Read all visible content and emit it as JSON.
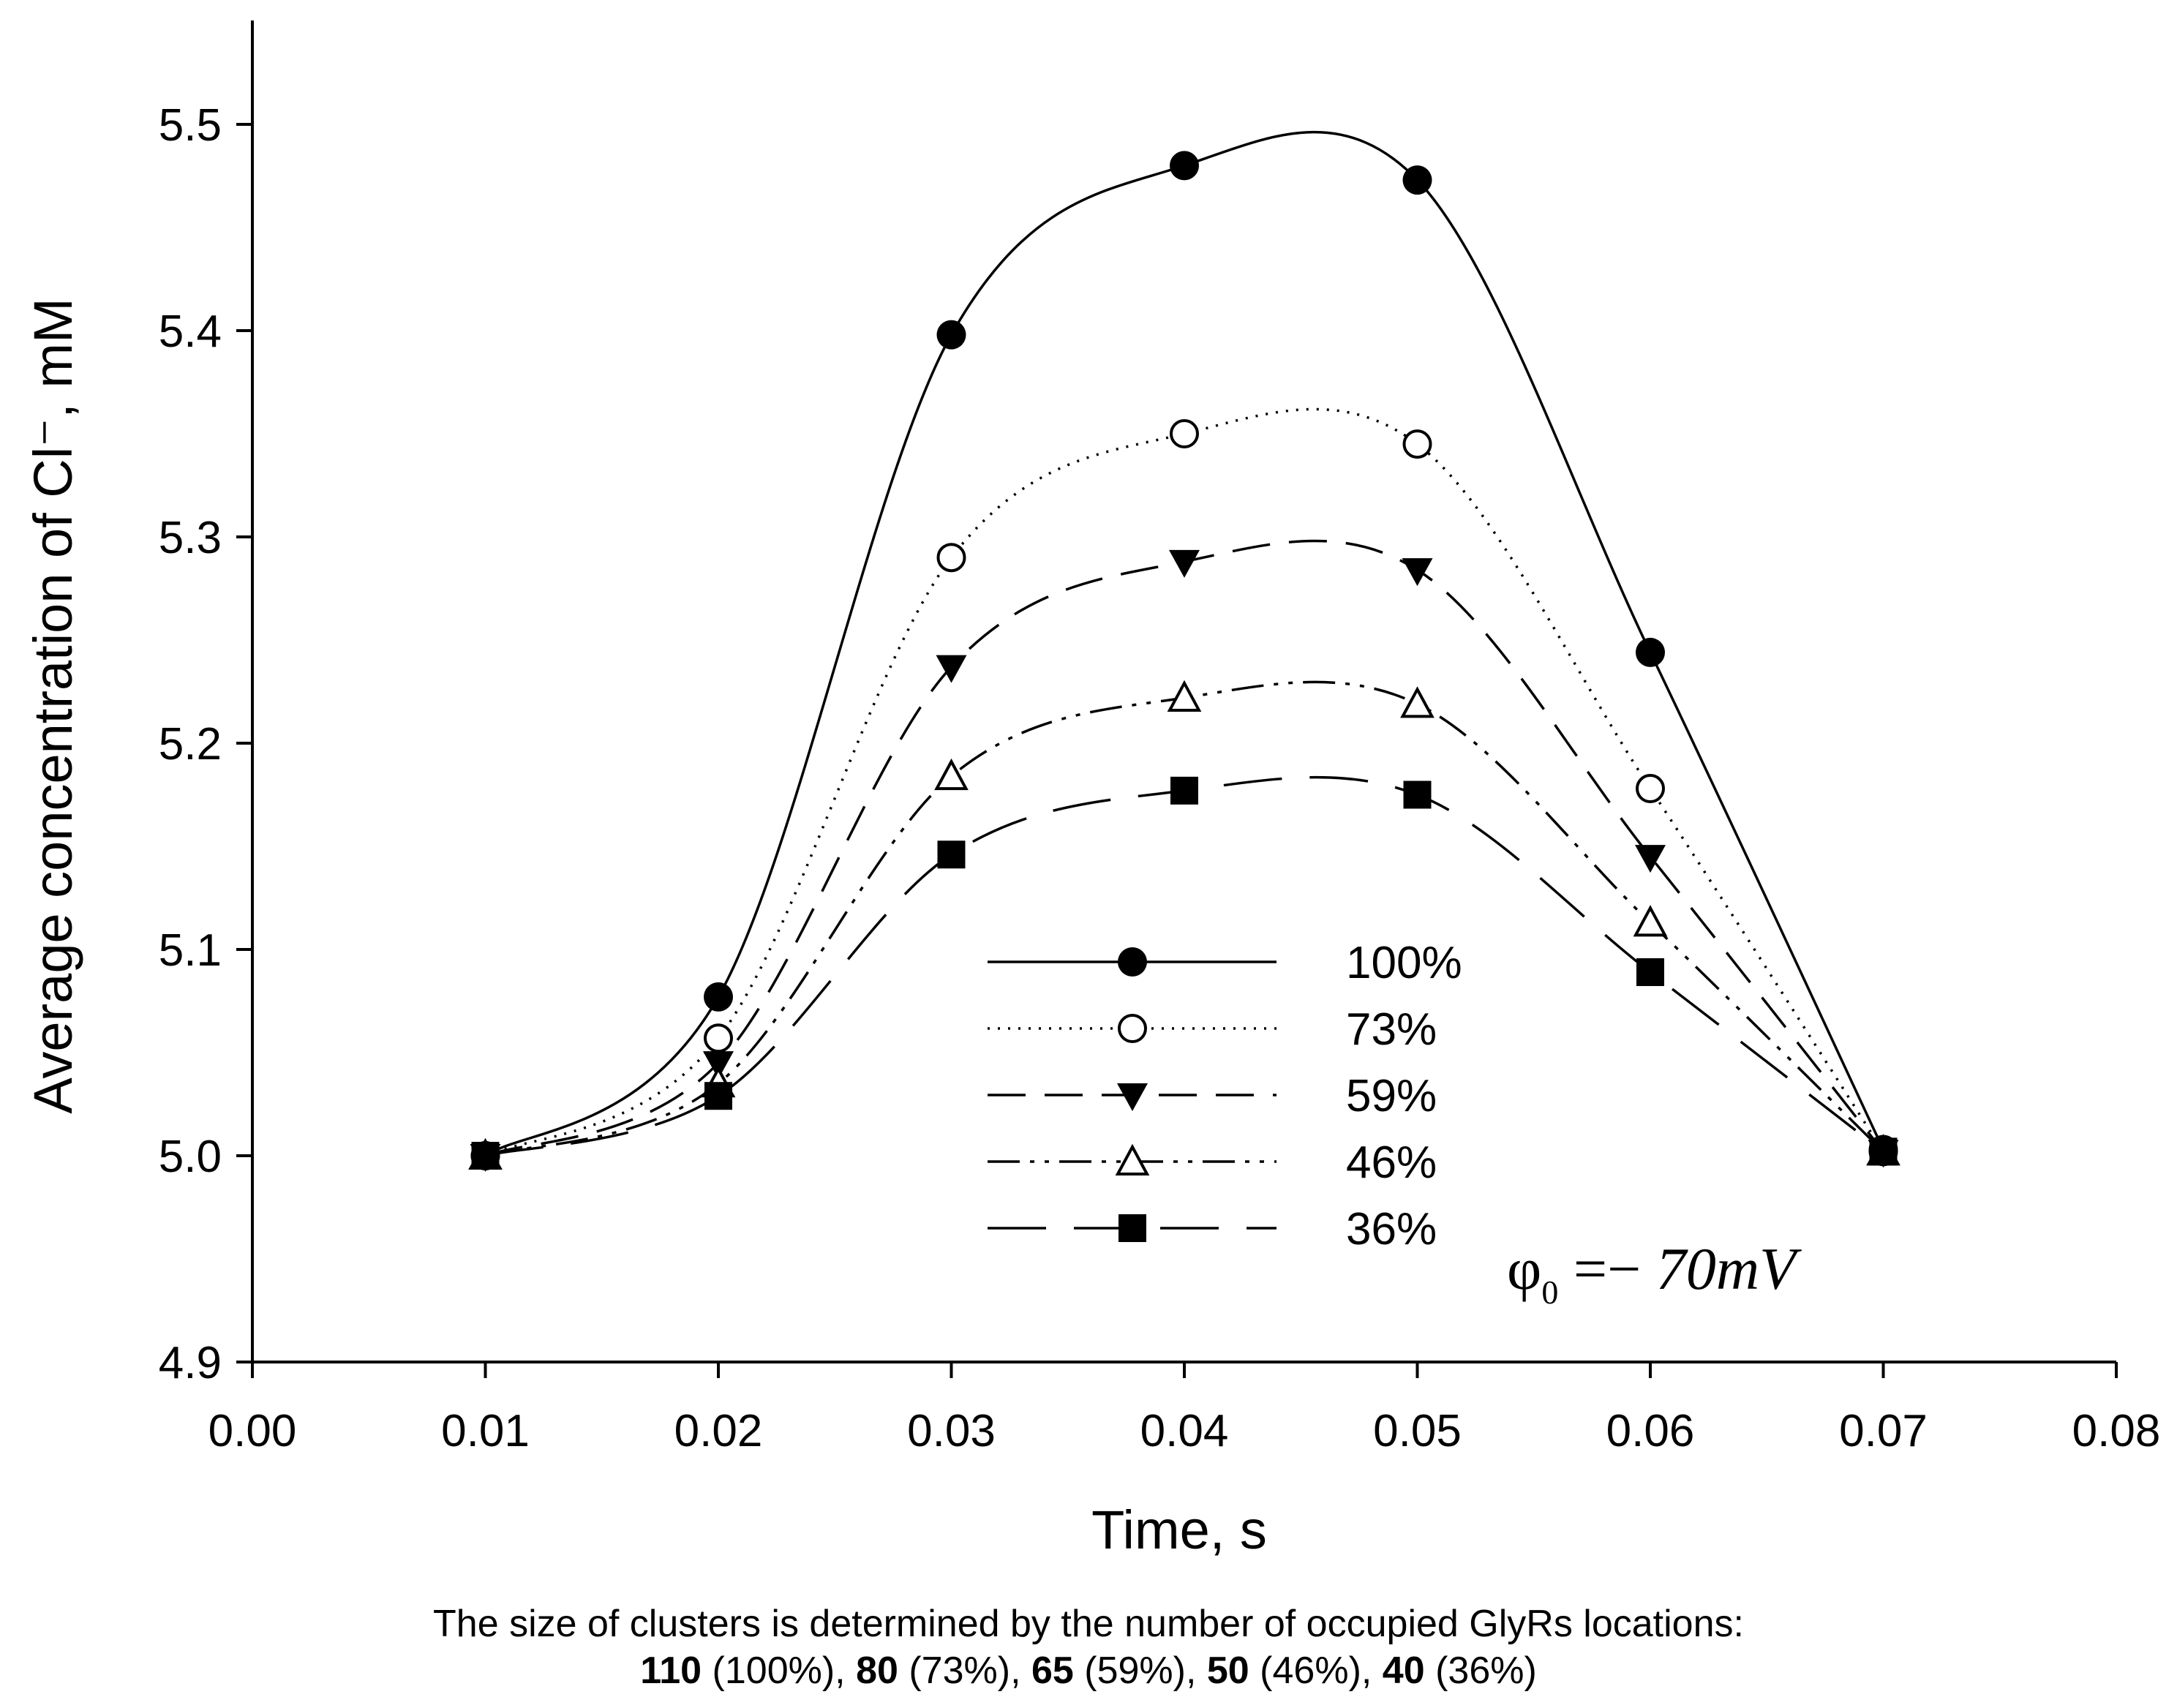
{
  "chart_data": {
    "type": "line",
    "xlabel": "Time, s",
    "ylabel": "Average concentration of Cl⁻, mM",
    "xlim": [
      0.0,
      0.08
    ],
    "ylim": [
      4.9,
      5.55
    ],
    "x_ticks": [
      "0.00",
      "0.01",
      "0.02",
      "0.03",
      "0.04",
      "0.05",
      "0.06",
      "0.07",
      "0.08"
    ],
    "y_ticks": [
      "4.9",
      "5.0",
      "5.1",
      "5.2",
      "5.3",
      "5.4",
      "5.5"
    ],
    "x": [
      0.01,
      0.02,
      0.03,
      0.04,
      0.05,
      0.06,
      0.07
    ],
    "legend_position": "lower-center",
    "series": [
      {
        "name": "100%",
        "marker": "filled-circle",
        "line": "solid",
        "values": [
          5.0,
          5.077,
          5.398,
          5.48,
          5.473,
          5.244,
          5.003
        ]
      },
      {
        "name": "73%",
        "marker": "open-circle",
        "line": "dotted",
        "values": [
          5.0,
          5.057,
          5.29,
          5.35,
          5.345,
          5.178,
          5.002
        ]
      },
      {
        "name": "59%",
        "marker": "filled-triangle-down",
        "line": "dashed",
        "values": [
          5.0,
          5.045,
          5.237,
          5.288,
          5.284,
          5.145,
          5.002
        ]
      },
      {
        "name": "46%",
        "marker": "open-triangle-up",
        "line": "dash-dot-dot",
        "values": [
          5.0,
          5.035,
          5.184,
          5.222,
          5.219,
          5.113,
          5.002
        ]
      },
      {
        "name": "36%",
        "marker": "filled-square",
        "line": "long-dash",
        "values": [
          5.0,
          5.029,
          5.146,
          5.177,
          5.175,
          5.089,
          5.002
        ]
      }
    ],
    "annotation": {
      "symbol": "φ",
      "subscript": "0",
      "rest": " =− ",
      "value": "70",
      "unit": "mV"
    }
  },
  "caption": {
    "line1": "The size of clusters is determined by the number of occupied GlyRs locations:",
    "parts": [
      {
        "num": "110",
        "pct": "(100%)",
        "sep": ", "
      },
      {
        "num": "80",
        "pct": "(73%)",
        "sep": ", "
      },
      {
        "num": "65",
        "pct": "(59%)",
        "sep": ", "
      },
      {
        "num": "50",
        "pct": "(46%)",
        "sep": ", "
      },
      {
        "num": "40",
        "pct": "(36%)",
        "sep": ""
      }
    ]
  },
  "colors": {
    "ink": "#000000",
    "background": "#ffffff"
  }
}
